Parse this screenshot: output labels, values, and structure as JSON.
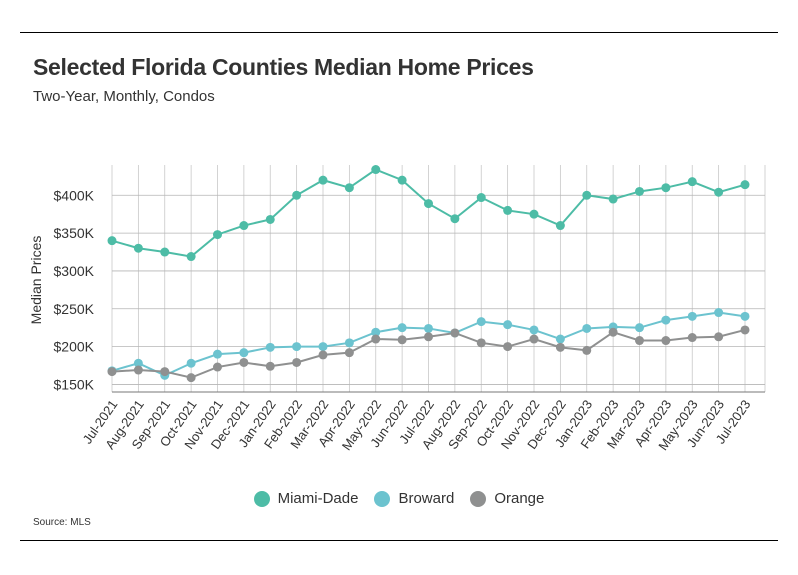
{
  "title": "Selected Florida Counties Median Home Prices",
  "subtitle": "Two-Year, Monthly, Condos",
  "source": "Source: MLS",
  "chart_data": {
    "type": "line",
    "title": "Selected Florida Counties Median Home Prices",
    "subtitle": "Two-Year, Monthly, Condos",
    "xlabel": "",
    "ylabel": "Median Prices",
    "ylim": [
      140000,
      440000
    ],
    "yticks": [
      150000,
      200000,
      250000,
      300000,
      350000,
      400000
    ],
    "ytick_labels": [
      "$150K",
      "$200K",
      "$250K",
      "$300K",
      "$350K",
      "$400K"
    ],
    "grid": true,
    "legend_position": "bottom-center",
    "categories": [
      "Jul-2021",
      "Aug-2021",
      "Sep-2021",
      "Oct-2021",
      "Nov-2021",
      "Dec-2021",
      "Jan-2022",
      "Feb-2022",
      "Mar-2022",
      "Apr-2022",
      "May-2022",
      "Jun-2022",
      "Jul-2022",
      "Aug-2022",
      "Sep-2022",
      "Oct-2022",
      "Nov-2022",
      "Dec-2022",
      "Jan-2023",
      "Feb-2023",
      "Mar-2023",
      "Apr-2023",
      "May-2023",
      "Jun-2023",
      "Jul-2023"
    ],
    "series": [
      {
        "name": "Miami-Dade",
        "color": "#4dbca6",
        "values": [
          340000,
          330000,
          325000,
          319000,
          348000,
          360000,
          368000,
          400000,
          420000,
          410000,
          434000,
          420000,
          389000,
          369000,
          397000,
          380000,
          375000,
          360000,
          400000,
          395000,
          405000,
          410000,
          418000,
          404000,
          414000
        ]
      },
      {
        "name": "Broward",
        "color": "#6cc3cf",
        "values": [
          168000,
          178000,
          162000,
          178000,
          190000,
          192000,
          199000,
          200000,
          200000,
          205000,
          219000,
          225000,
          224000,
          218000,
          233000,
          229000,
          222000,
          210000,
          224000,
          226000,
          225000,
          235000,
          240000,
          245000,
          240000
        ]
      },
      {
        "name": "Orange",
        "color": "#8f9090",
        "values": [
          167000,
          169000,
          167000,
          159000,
          173000,
          179000,
          174000,
          179000,
          189000,
          192000,
          210000,
          209000,
          213000,
          218000,
          205000,
          200000,
          210000,
          199000,
          195000,
          219000,
          208000,
          208000,
          212000,
          213000,
          222000
        ]
      }
    ]
  }
}
